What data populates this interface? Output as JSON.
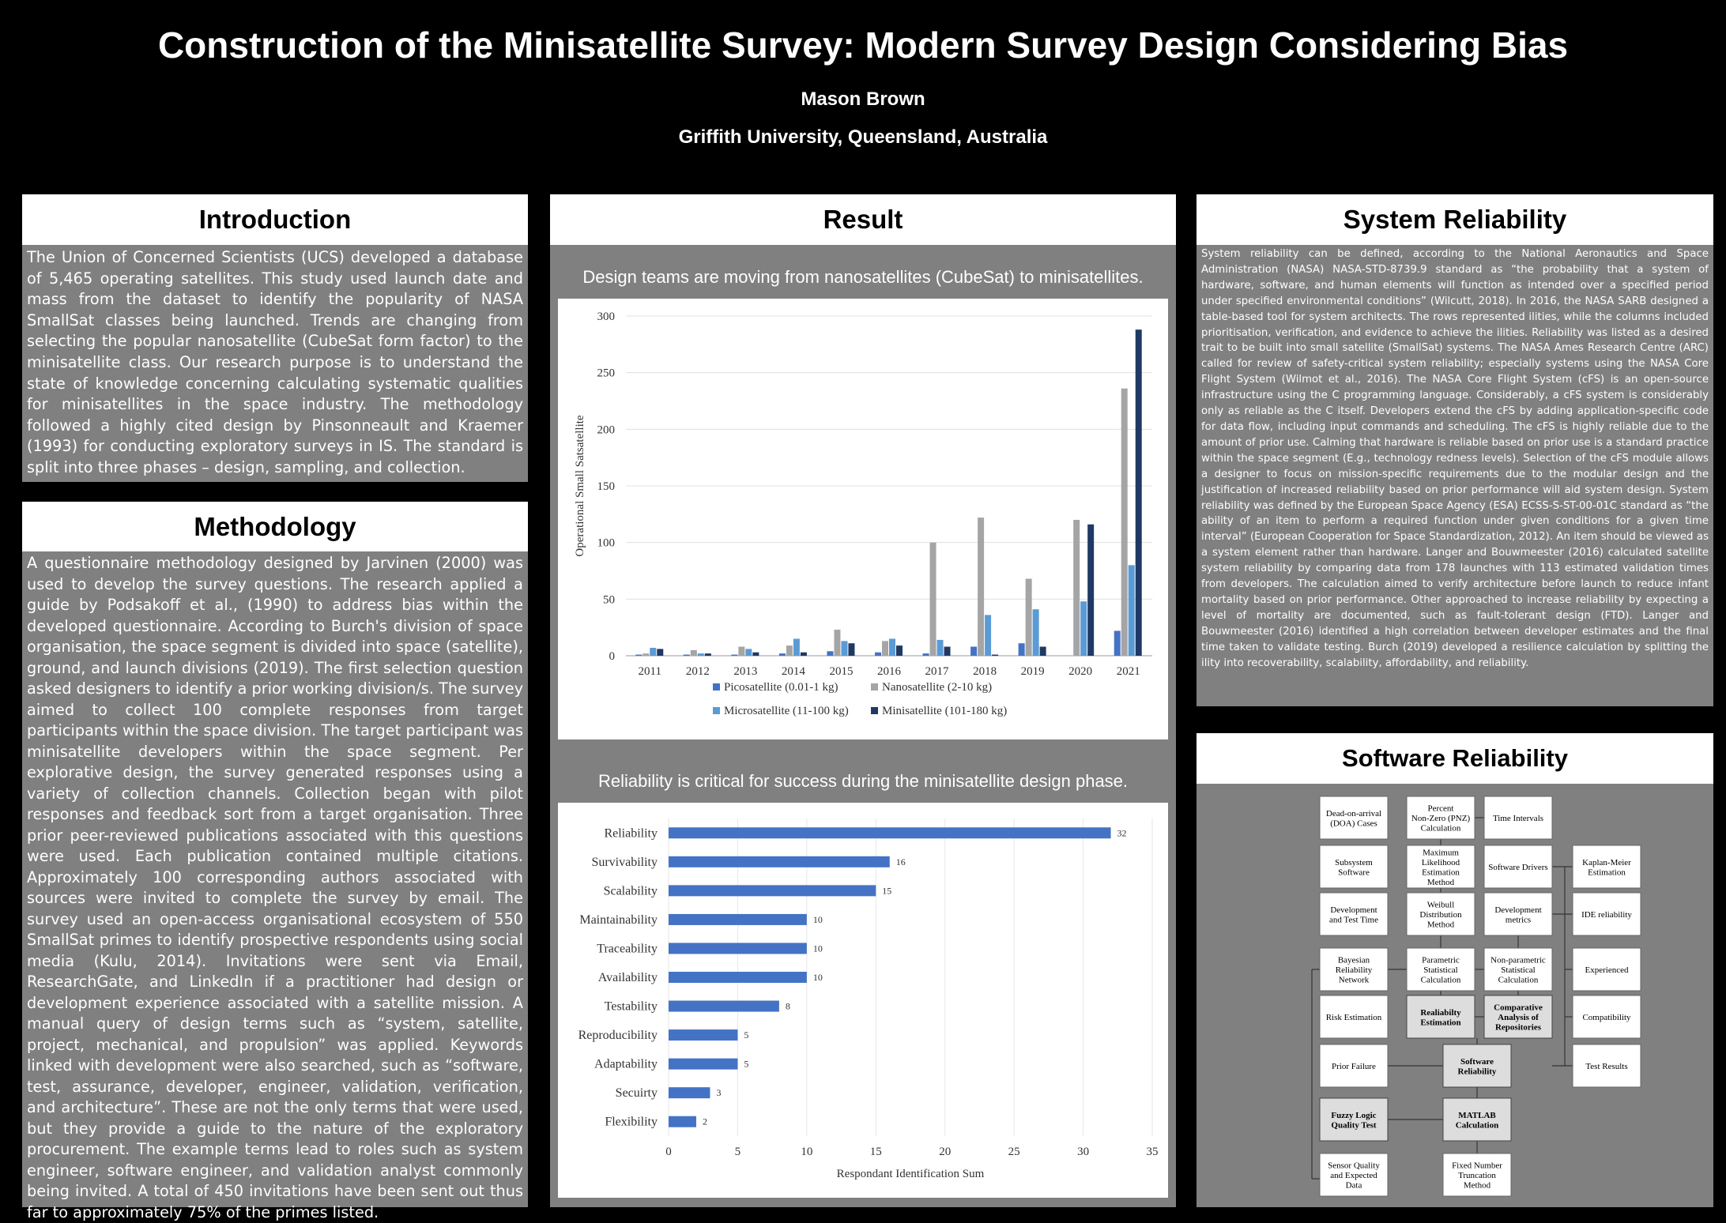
{
  "header": {
    "title": "Construction of the Minisatellite Survey: Modern Survey Design Considering Bias",
    "author": "Mason Brown",
    "affiliation": "Griffith University, Queensland, Australia"
  },
  "introduction": {
    "heading": "Introduction",
    "text": "The Union of Concerned Scientists (UCS) developed a database of 5,465 operating satellites. This study used launch date and mass from the dataset to identify the popularity of NASA SmallSat classes being launched. Trends are changing from selecting the popular nanosatellite (CubeSat form factor) to the minisatellite class. Our research purpose is to understand the state of knowledge concerning calculating systematic qualities for minisatellites in the space industry. The methodology followed a highly cited design by Pinsonneault and Kraemer (1993) for conducting exploratory surveys in IS. The standard is split into three phases – design, sampling, and collection."
  },
  "methodology": {
    "heading": "Methodology",
    "text": "A questionnaire methodology designed by Jarvinen (2000) was used to develop the survey questions. The research applied a guide by Podsakoff et al., (1990) to address bias within the developed questionnaire. According to Burch's division of space organisation, the space segment is divided into space (satellite), ground, and launch divisions (2019). The first selection question asked designers to identify a prior working division/s. The survey aimed to collect 100 complete responses from target participants within the space division. The target participant was minisatellite developers within the space segment. Per explorative design, the survey generated responses using a variety of collection channels. Collection began with pilot responses and feedback sort from a target organisation. Three prior peer-reviewed publications associated with this questions were used. Each publication contained multiple citations. Approximately 100 corresponding authors associated with sources were invited to complete the survey by email. The survey used an open-access organisational ecosystem of 550 SmallSat primes to identify prospective respondents using social media (Kulu, 2014). Invitations were sent via Email, ResearchGate, and LinkedIn if a practitioner had design or development experience associated with a satellite mission. A manual query of design terms such as “system, satellite, project, mechanical, and propulsion” was applied. Keywords linked with development were also searched, such as “software, test, assurance, developer, engineer, validation, verification, and architecture”. These are not the only terms that were used, but they provide a guide to the nature of the exploratory procurement. The example terms lead to roles such as system engineer, software engineer, and validation analyst commonly being invited. A total of 450 invitations have been sent out thus far to approximately 75% of the primes listed."
  },
  "result": {
    "heading": "Result",
    "caption1": "Design teams are moving from nanosatellites (CubeSat) to minisatellites.",
    "caption2": "Reliability is critical for success during the minisatellite design phase."
  },
  "system_reliability": {
    "heading": "System Reliability",
    "text": "System reliability can be defined, according to the National Aeronautics and Space Administration (NASA) NASA-STD-8739.9 standard as “the probability that a system of hardware, software, and human elements will function as intended over a specified period under specified environmental conditions” (Wilcutt, 2018). In 2016, the NASA SARB designed a table-based tool for system architects. The rows represented ilities, while the columns included prioritisation, verification, and evidence to achieve the ilities. Reliability was listed as a desired trait to be built into small satellite (SmallSat) systems. The NASA Ames Research Centre (ARC) called for review of safety-critical system reliability; especially systems using the NASA Core Flight System (Wilmot et al., 2016). The NASA Core Flight System (cFS) is an open-source infrastructure using the C programming language. Considerably, a cFS system is considerably only as reliable as the C itself. Developers extend the cFS by adding application-specific code for data flow, including input commands and scheduling. The cFS is highly reliable due to the amount of prior use. Calming that hardware is reliable based on prior use is a standard practice within the space segment (E.g., technology redness levels). Selection of the cFS module allows a designer to focus on mission-specific requirements due to the modular design and the justification of increased reliability based on prior performance will aid system design. System reliability was defined by the European Space Agency (ESA) ECSS-S-ST-00-01C standard as “the ability of an item to perform a required function under given conditions for a given time interval” (European Cooperation for Space Standardization, 2012). An item should be viewed as a system element rather than hardware. Langer and Bouwmeester (2016) calculated satellite system reliability by comparing data from 178 launches with 113 estimated validation times from developers. The calculation aimed to verify architecture before launch to reduce infant mortality based on prior performance. Other approached to increase reliability by expecting a level of mortality are documented, such as fault-tolerant design (FTD). Langer and Bouwmeester (2016) identified a high correlation between developer estimates and the final time taken to validate testing. Burch (2019) developed a resilience calculation by splitting the ility into recoverability, scalability, affordability, and reliability."
  },
  "software_reliability": {
    "heading": "Software Reliability",
    "nodes": {
      "doa": [
        "Dead-on-arrival",
        "(DOA) Cases"
      ],
      "pnz": [
        "Percent",
        "Non-Zero (PNZ)",
        "Calculation"
      ],
      "time_intervals": [
        "Time Intervals"
      ],
      "subsystem": [
        "Subsystem",
        "Software"
      ],
      "mle": [
        "Maximum",
        "Likelihood",
        "Estimation",
        "Method"
      ],
      "drivers": [
        "Software Drivers"
      ],
      "km": [
        "Kaplan-Meier",
        "Estimation"
      ],
      "dev_test": [
        "Development",
        "and Test Time"
      ],
      "weibull": [
        "Weibull",
        "Distribution",
        "Method"
      ],
      "dev_metrics": [
        "Development",
        "metrics"
      ],
      "ide": [
        "IDE reliability"
      ],
      "bayes": [
        "Bayesian",
        "Reliability",
        "Network"
      ],
      "param": [
        "Parametric",
        "Statistical",
        "Calculation"
      ],
      "nonparam": [
        "Non-parametric",
        "Statistical",
        "Calculation"
      ],
      "experienced": [
        "Experienced"
      ],
      "risk": [
        "Risk Estimation"
      ],
      "rel_est": [
        "Realiabilty",
        "Estimation"
      ],
      "comp": [
        "Comparative",
        "Analysis of",
        "Repositories"
      ],
      "compat": [
        "Compatibility"
      ],
      "prior": [
        "Prior Failure"
      ],
      "sw_rel": [
        "Software",
        "Reliability"
      ],
      "test_results": [
        "Test Results"
      ],
      "fuzzy": [
        "Fuzzy Logic",
        "Quality Test"
      ],
      "matlab": [
        "MATLAB",
        "Calculation"
      ],
      "sensor": [
        "Sensor Quality",
        "and Expected",
        "Data"
      ],
      "fixed": [
        "Fixed Number",
        "Truncation",
        "Method"
      ]
    }
  },
  "chart_data": [
    {
      "type": "bar",
      "title": "",
      "xlabel": "",
      "ylabel": "Operational Small Satsatellite",
      "ylim": [
        0,
        300
      ],
      "yticks": [
        0,
        50,
        100,
        150,
        200,
        250,
        300
      ],
      "grid": true,
      "legend_position": "bottom",
      "categories": [
        "2011",
        "2012",
        "2013",
        "2014",
        "2015",
        "2016",
        "2017",
        "2018",
        "2019",
        "2020",
        "2021"
      ],
      "series": [
        {
          "name": "Picosatellite  (0.01-1 kg)",
          "color": "#4472c4",
          "values": [
            1,
            1,
            1,
            2,
            4,
            3,
            2,
            8,
            11,
            0,
            22
          ]
        },
        {
          "name": "Nanosatellite (2-10 kg)",
          "color": "#a5a5a5",
          "values": [
            2,
            5,
            8,
            9,
            23,
            13,
            100,
            122,
            68,
            120,
            236
          ]
        },
        {
          "name": "Microsatellite (11-100 kg)",
          "color": "#5b9bd5",
          "values": [
            7,
            2,
            6,
            15,
            13,
            15,
            14,
            36,
            41,
            48,
            80
          ]
        },
        {
          "name": "Minisatellite (101-180 kg)",
          "color": "#203864",
          "values": [
            6,
            2,
            3,
            3,
            11,
            9,
            8,
            1,
            8,
            116,
            288
          ]
        }
      ]
    },
    {
      "type": "bar",
      "orientation": "horizontal",
      "title": "",
      "xlabel": "Respondant Identification Sum",
      "ylabel": "",
      "xlim": [
        0,
        35
      ],
      "xticks": [
        0,
        5,
        10,
        15,
        20,
        25,
        30,
        35
      ],
      "grid": true,
      "color": "#4472c4",
      "categories": [
        "Reliability",
        "Survivability",
        "Scalability",
        "Maintainability",
        "Traceability",
        "Availability",
        "Testability",
        "Reproducibility",
        "Adaptability",
        "Secuirty",
        "Flexibility"
      ],
      "values": [
        32,
        16,
        15,
        10,
        10,
        10,
        8,
        5,
        5,
        3,
        2
      ]
    }
  ]
}
